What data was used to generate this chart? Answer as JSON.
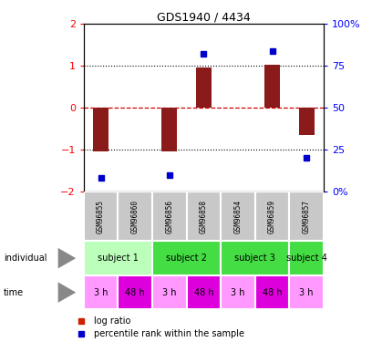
{
  "title": "GDS1940 / 4434",
  "samples": [
    "GSM96855",
    "GSM96860",
    "GSM96856",
    "GSM96858",
    "GSM96854",
    "GSM96859",
    "GSM96857"
  ],
  "log_ratio": [
    -1.05,
    0.0,
    -1.05,
    0.97,
    0.0,
    1.02,
    -0.65
  ],
  "percentile_rank": [
    8,
    null,
    10,
    82,
    null,
    84,
    20
  ],
  "ylim_left": [
    -2,
    2
  ],
  "ylim_right": [
    0,
    100
  ],
  "yticks_left": [
    -2,
    -1,
    0,
    1,
    2
  ],
  "ytick_labels_right": [
    "0%",
    "25",
    "50",
    "75",
    "100%"
  ],
  "bar_color": "#8B1A1A",
  "dot_color": "#0000CC",
  "zero_line_color": "#CC0000",
  "subjects": [
    {
      "label": "subject 1",
      "start": 0,
      "end": 2,
      "color": "#BBFFBB"
    },
    {
      "label": "subject 2",
      "start": 2,
      "end": 4,
      "color": "#44DD44"
    },
    {
      "label": "subject 3",
      "start": 4,
      "end": 6,
      "color": "#44DD44"
    },
    {
      "label": "subject 4",
      "start": 6,
      "end": 7,
      "color": "#44DD44"
    }
  ],
  "times": [
    "3 h",
    "48 h",
    "3 h",
    "48 h",
    "3 h",
    "48 h",
    "3 h"
  ],
  "time_colors": [
    "#FF99FF",
    "#DD00DD",
    "#FF99FF",
    "#DD00DD",
    "#FF99FF",
    "#DD00DD",
    "#FF99FF"
  ],
  "gsm_bg": "#C8C8C8",
  "legend_bar_color": "#CC2200",
  "legend_dot_color": "#0000CC"
}
